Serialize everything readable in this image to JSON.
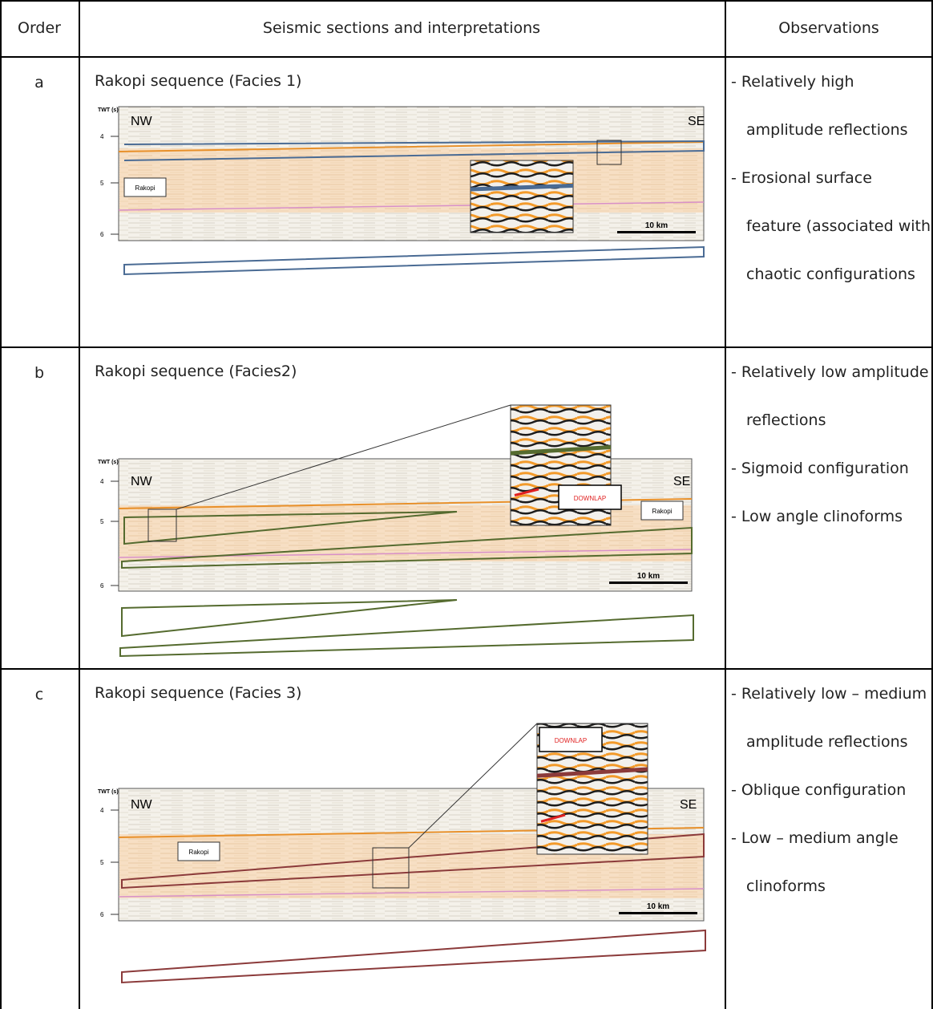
{
  "table": {
    "headers": [
      "Order",
      "Seismic sections and interpretations",
      "Observations"
    ],
    "rows": [
      {
        "order": "a",
        "title": "Rakopi sequence (Facies 1)",
        "figure": {
          "axis_label": "TWT (s)",
          "ticks": [
            "4",
            "5",
            "6"
          ],
          "left": "NW",
          "right": "SE",
          "unit_label": "Rakopi",
          "scale": "10 km"
        },
        "observations": [
          "Relatively high amplitude reflections",
          "Erosional surface feature (associated with chaotic configurations"
        ]
      },
      {
        "order": "b",
        "title": "Rakopi sequence (Facies2)",
        "figure": {
          "axis_label": "TWT (s)",
          "ticks": [
            "4",
            "5",
            "6"
          ],
          "left": "NW",
          "right": "SE",
          "unit_label": "Rakopi",
          "scale": "10 km",
          "callout": "DOWNLAP"
        },
        "observations": [
          "Relatively low amplitude reflections",
          "Sigmoid configuration",
          "Low angle clinoforms"
        ]
      },
      {
        "order": "c",
        "title": "Rakopi sequence (Facies 3)",
        "figure": {
          "axis_label": "TWT (s)",
          "ticks": [
            "4",
            "5",
            "6"
          ],
          "left": "NW",
          "right": "SE",
          "unit_label": "Rakopi",
          "scale": "10 km",
          "callout": "DOWNLAP"
        },
        "observations": [
          "Relatively low – medium amplitude reflections",
          "Oblique configuration",
          "Low – medium angle clinoforms"
        ]
      }
    ]
  }
}
